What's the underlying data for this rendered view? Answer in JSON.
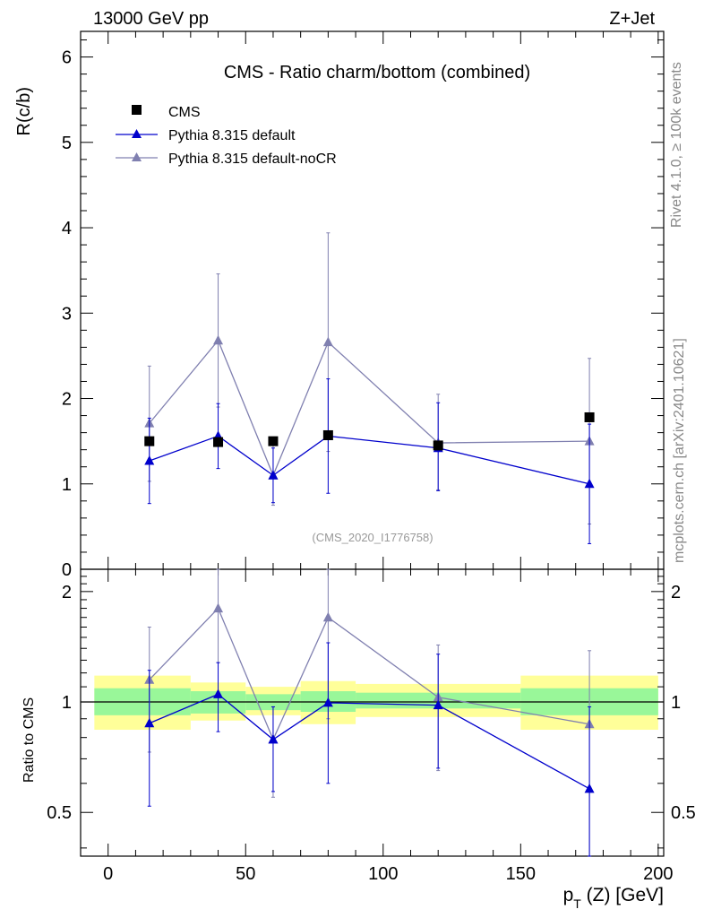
{
  "header": {
    "energy_label": "13000 GeV pp",
    "process_label": "Z+Jet"
  },
  "side_labels": {
    "rivet": "Rivet 4.1.0, ≥ 100k events",
    "mcplots": "mcplots.cern.ch [arXiv:2401.10621]"
  },
  "colors": {
    "data": "#000000",
    "default": "#0000cc",
    "nocr": "#8080b0",
    "band_inner": "#99f799",
    "band_outer": "#ffff99",
    "ref_line": "#000000"
  },
  "chart_data": [
    {
      "id": "main",
      "type": "scatter",
      "title": "CMS - Ratio charm/bottom (combined)",
      "xlabel": "",
      "ylabel": "R(c/b)",
      "xlim": [
        -10,
        202
      ],
      "ylim": [
        0,
        6.3
      ],
      "yticks": [
        0,
        1,
        2,
        3,
        4,
        5,
        6
      ],
      "ytick_labels": [
        "0",
        "1",
        "2",
        "3",
        "4",
        "5",
        "6"
      ],
      "watermark": "(CMS_2020_I1776758)",
      "legend": {
        "position": "top-left",
        "entries": [
          "CMS",
          "Pythia 8.315 default",
          "Pythia 8.315 default-noCR"
        ]
      },
      "series": [
        {
          "name": "CMS",
          "marker": "square",
          "x": [
            15,
            40,
            60,
            80,
            120,
            175
          ],
          "y": [
            1.5,
            1.49,
            1.5,
            1.57,
            1.45,
            1.78
          ]
        },
        {
          "name": "Pythia 8.315 default",
          "marker": "triangle",
          "line": true,
          "x": [
            15,
            40,
            60,
            80,
            120,
            175
          ],
          "y": [
            1.27,
            1.56,
            1.1,
            1.56,
            1.42,
            1.0
          ],
          "yerr_low": [
            0.5,
            0.38,
            0.32,
            0.67,
            0.5,
            0.7
          ],
          "yerr_high": [
            0.5,
            0.38,
            0.32,
            0.67,
            0.53,
            0.7
          ]
        },
        {
          "name": "Pythia 8.315 default-noCR",
          "marker": "triangle",
          "line": true,
          "x": [
            15,
            40,
            60,
            80,
            120,
            175
          ],
          "y": [
            1.71,
            2.68,
            1.1,
            2.66,
            1.48,
            1.5
          ],
          "yerr_low": [
            0.68,
            0.78,
            0.35,
            1.28,
            0.55,
            0.97
          ],
          "yerr_high": [
            0.67,
            0.78,
            0.35,
            1.28,
            0.57,
            0.97
          ]
        }
      ]
    },
    {
      "id": "ratio",
      "type": "scatter",
      "xlabel": "p_T (Z) [GeV]",
      "ylabel": "Ratio to CMS",
      "xlim": [
        -10,
        202
      ],
      "ylim": [
        0.38,
        2.3
      ],
      "yscale": "log",
      "yticks": [
        0.5,
        1,
        2
      ],
      "ytick_labels": [
        "0.5",
        "1",
        "2"
      ],
      "xticks": [
        0,
        50,
        100,
        150,
        200
      ],
      "xtick_labels": [
        "0",
        "50",
        "100",
        "150",
        "200"
      ],
      "bins": [
        [
          -5,
          30
        ],
        [
          30,
          50
        ],
        [
          50,
          70
        ],
        [
          70,
          90
        ],
        [
          90,
          150
        ],
        [
          150,
          200
        ]
      ],
      "band_inner": [
        [
          0.92,
          1.09
        ],
        [
          0.93,
          1.07
        ],
        [
          0.95,
          1.05
        ],
        [
          0.94,
          1.07
        ],
        [
          0.96,
          1.06
        ],
        [
          0.92,
          1.09
        ]
      ],
      "band_outer": [
        [
          0.84,
          1.18
        ],
        [
          0.89,
          1.13
        ],
        [
          0.92,
          1.1
        ],
        [
          0.87,
          1.14
        ],
        [
          0.91,
          1.12
        ],
        [
          0.84,
          1.18
        ]
      ],
      "series": [
        {
          "name": "Pythia 8.315 default",
          "x": [
            15,
            40,
            60,
            80,
            120,
            175
          ],
          "y": [
            0.875,
            1.05,
            0.79,
            0.995,
            0.98,
            0.58
          ],
          "ylow": [
            0.52,
            0.83,
            0.57,
            0.6,
            0.66,
            0.37
          ],
          "yhigh": [
            1.22,
            1.28,
            0.97,
            1.45,
            1.35,
            0.97
          ]
        },
        {
          "name": "Pythia 8.315 default-noCR",
          "x": [
            15,
            40,
            60,
            80,
            120,
            175
          ],
          "y": [
            1.15,
            1.8,
            0.79,
            1.7,
            1.03,
            0.87
          ],
          "ylow": [
            0.73,
            1.28,
            0.55,
            0.9,
            0.65,
            0.37
          ],
          "yhigh": [
            1.6,
            2.3,
            0.97,
            2.3,
            1.43,
            1.38
          ]
        }
      ]
    }
  ]
}
